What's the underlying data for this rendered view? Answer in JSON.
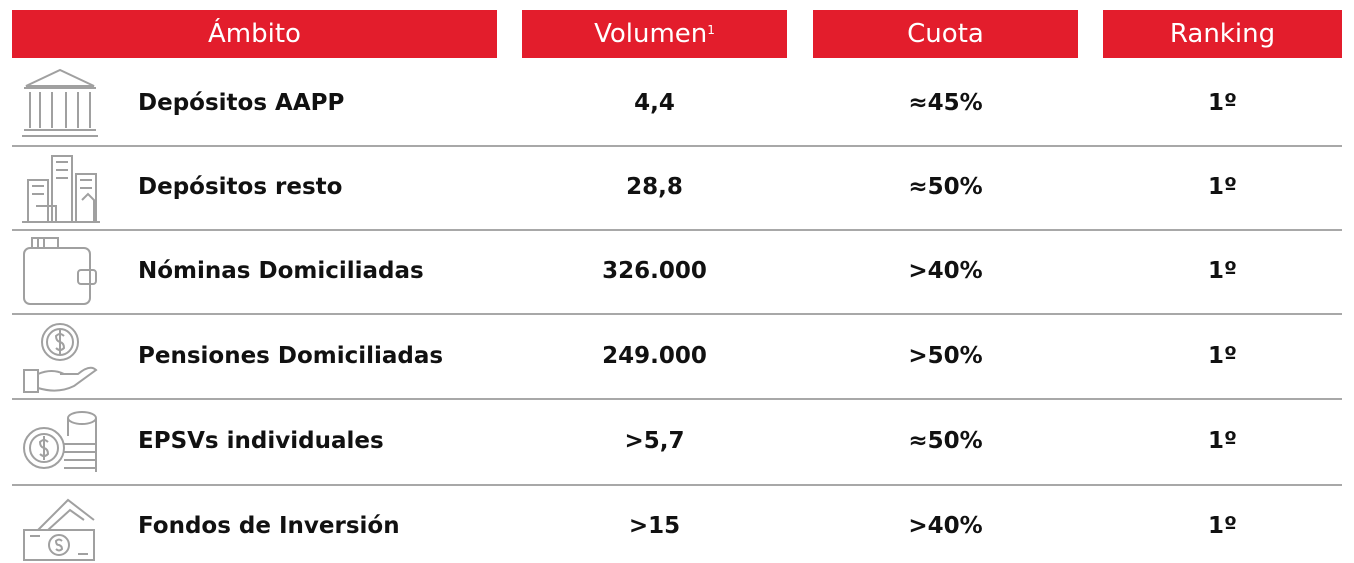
{
  "table": {
    "header": [
      "Ámbito",
      "Volumen",
      "Cuota",
      "Ranking"
    ],
    "header_note": "1",
    "rows": [
      [
        "Depósitos AAPP",
        "4,4",
        "≈45%",
        "1º"
      ],
      [
        "Depósitos resto",
        "28,8",
        "≈50%",
        "1º"
      ],
      [
        "Nóminas Domiciliadas",
        "326.000",
        ">40%",
        "1º"
      ],
      [
        "Pensiones Domiciliadas",
        "249.000",
        ">50%",
        "1º"
      ],
      [
        "EPSVs individuales",
        ">5,7",
        "≈50%",
        "1º"
      ],
      [
        "Fondos de Inversión",
        ">15",
        ">40%",
        "1º"
      ]
    ]
  }
}
